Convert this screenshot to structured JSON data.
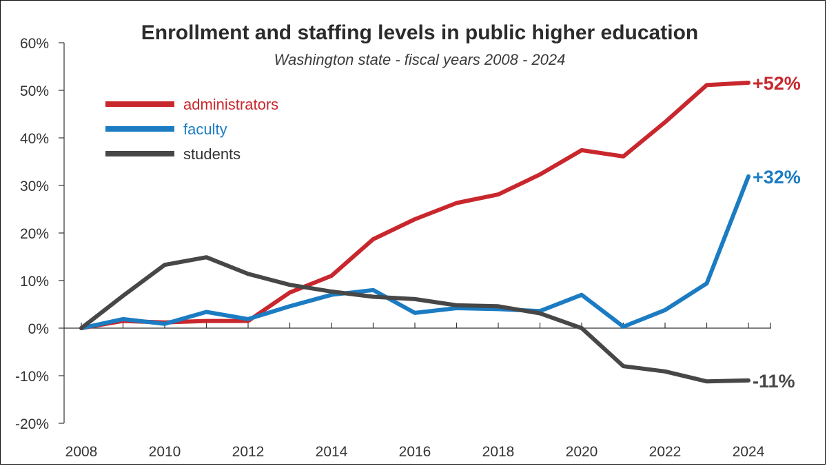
{
  "chart_data": {
    "type": "line",
    "title": "Enrollment and staffing levels in public higher education",
    "subtitle": "Washington state - fiscal years 2008 - 2024",
    "xlabel": "",
    "ylabel": "",
    "ylim": [
      -20,
      60
    ],
    "xlim": [
      2008,
      2024
    ],
    "y_ticks": [
      60,
      50,
      40,
      30,
      20,
      10,
      0,
      -10,
      -20
    ],
    "y_tick_labels": [
      "60%",
      "50%",
      "40%",
      "30%",
      "20%",
      "10%",
      "0%",
      "-10%",
      "-20%"
    ],
    "x_ticks": [
      2008,
      2010,
      2012,
      2014,
      2016,
      2018,
      2020,
      2022,
      2024
    ],
    "x_tick_labels": [
      "2008",
      "2010",
      "2012",
      "2014",
      "2016",
      "2018",
      "2020",
      "2022",
      "2024"
    ],
    "x": [
      2008,
      2009,
      2010,
      2011,
      2012,
      2013,
      2014,
      2015,
      2016,
      2017,
      2018,
      2019,
      2020,
      2021,
      2022,
      2023,
      2024
    ],
    "series": [
      {
        "name": "administrators",
        "color": "#c8272d",
        "values": [
          0,
          1.5,
          1.2,
          1.5,
          1.5,
          7.5,
          11,
          18.7,
          22.9,
          26.3,
          28.1,
          32.3,
          37.4,
          36.1,
          43.3,
          51.1,
          51.6
        ],
        "end_label": "+52%"
      },
      {
        "name": "faculty",
        "color": "#1b7cc2",
        "values": [
          0,
          1.9,
          0.9,
          3.4,
          1.9,
          4.6,
          7.0,
          8.0,
          3.2,
          4.2,
          4.0,
          3.6,
          7.0,
          0.3,
          3.8,
          9.4,
          31.9
        ],
        "end_label": "+32%"
      },
      {
        "name": "students",
        "color": "#474747",
        "values": [
          0,
          6.8,
          13.3,
          14.9,
          11.4,
          9.1,
          7.7,
          6.6,
          6.1,
          4.8,
          4.6,
          3.1,
          0,
          -8.0,
          -9.1,
          -11.2,
          -11.0
        ],
        "end_label": "-11%"
      }
    ],
    "legend": {
      "placement": "top-left",
      "items": [
        "administrators",
        "faculty",
        "students"
      ]
    },
    "grid": false
  }
}
